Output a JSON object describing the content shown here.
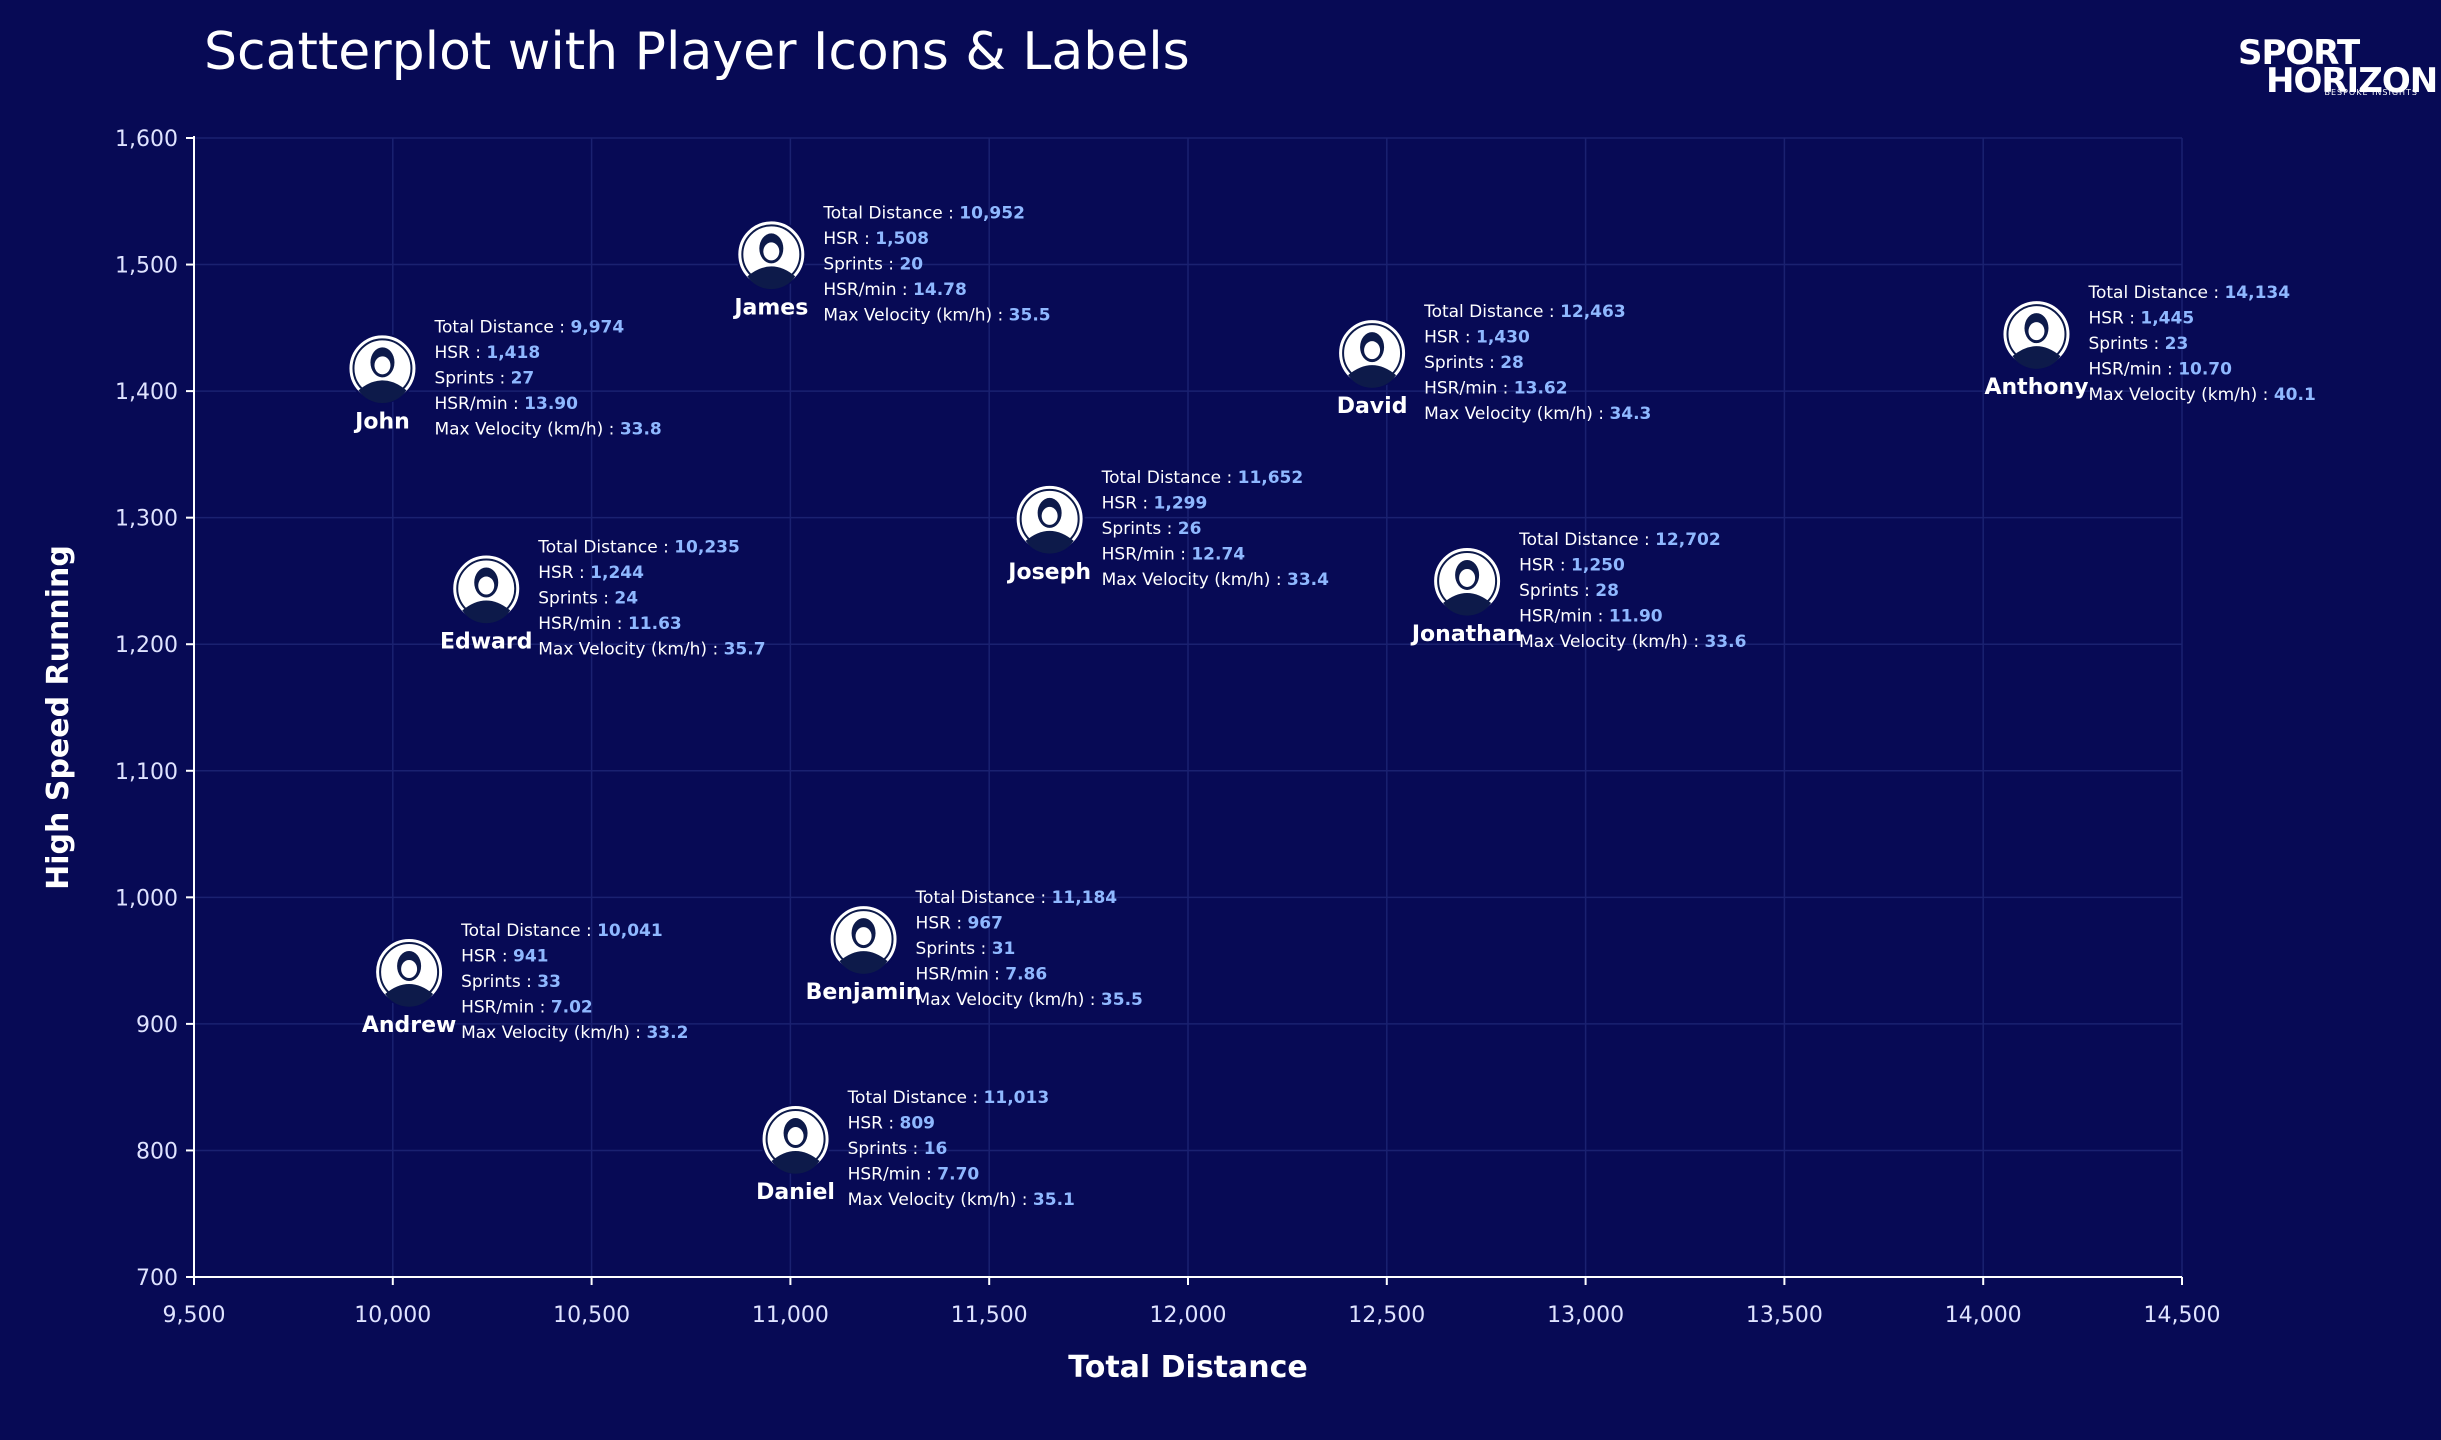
{
  "title": "Scatterplot with Player Icons & Labels",
  "logo": {
    "line1": "SPORT",
    "line2": "HORIZON",
    "tagline": "BESPOKE INSIGHTS"
  },
  "colors": {
    "background": "#070a55",
    "grid": "#1a2170",
    "axis": "#ffffff",
    "text": "#ffffff",
    "value": "#8fb8ff",
    "icon_bg": "#ffffff",
    "icon_figure": "#0d1a4a"
  },
  "tooltip_labels": {
    "total_distance": "Total Distance : ",
    "hsr": "HSR : ",
    "sprints": "Sprints : ",
    "hsr_min": "HSR/min : ",
    "max_velocity": "Max Velocity (km/h) : "
  },
  "chart_data": {
    "type": "scatter",
    "title": "Scatterplot with Player Icons & Labels",
    "xlabel": "Total Distance",
    "ylabel": "High Speed Running",
    "xlim": [
      9500,
      14500
    ],
    "ylim": [
      700,
      1600
    ],
    "xticks": [
      "9,500",
      "10,000",
      "10,500",
      "11,000",
      "11,500",
      "12,000",
      "12,500",
      "13,000",
      "13,500",
      "14,000",
      "14,500"
    ],
    "yticks": [
      "700",
      "800",
      "900",
      "1,000",
      "1,100",
      "1,200",
      "1,300",
      "1,400",
      "1,500",
      "1,600"
    ],
    "grid": true,
    "points": [
      {
        "name": "James",
        "total_distance": 10952,
        "hsr": 1508,
        "sprints": 20,
        "hsr_min": "14.78",
        "max_velocity": "35.5",
        "icon": "player-icon"
      },
      {
        "name": "John",
        "total_distance": 9974,
        "hsr": 1418,
        "sprints": 27,
        "hsr_min": "13.90",
        "max_velocity": "33.8",
        "icon": "player-icon"
      },
      {
        "name": "David",
        "total_distance": 12463,
        "hsr": 1430,
        "sprints": 28,
        "hsr_min": "13.62",
        "max_velocity": "34.3",
        "icon": "player-icon"
      },
      {
        "name": "Anthony",
        "total_distance": 14134,
        "hsr": 1445,
        "sprints": 23,
        "hsr_min": "10.70",
        "max_velocity": "40.1",
        "icon": "player-icon"
      },
      {
        "name": "Joseph",
        "total_distance": 11652,
        "hsr": 1299,
        "sprints": 26,
        "hsr_min": "12.74",
        "max_velocity": "33.4",
        "icon": "player-icon"
      },
      {
        "name": "Edward",
        "total_distance": 10235,
        "hsr": 1244,
        "sprints": 24,
        "hsr_min": "11.63",
        "max_velocity": "35.7",
        "icon": "player-icon"
      },
      {
        "name": "Jonathan",
        "total_distance": 12702,
        "hsr": 1250,
        "sprints": 28,
        "hsr_min": "11.90",
        "max_velocity": "33.6",
        "icon": "player-icon"
      },
      {
        "name": "Benjamin",
        "total_distance": 11184,
        "hsr": 967,
        "sprints": 31,
        "hsr_min": "7.86",
        "max_velocity": "35.5",
        "icon": "player-icon"
      },
      {
        "name": "Andrew",
        "total_distance": 10041,
        "hsr": 941,
        "sprints": 33,
        "hsr_min": "7.02",
        "max_velocity": "33.2",
        "icon": "player-icon"
      },
      {
        "name": "Daniel",
        "total_distance": 11013,
        "hsr": 809,
        "sprints": 16,
        "hsr_min": "7.70",
        "max_velocity": "35.1",
        "icon": "player-icon"
      }
    ]
  }
}
